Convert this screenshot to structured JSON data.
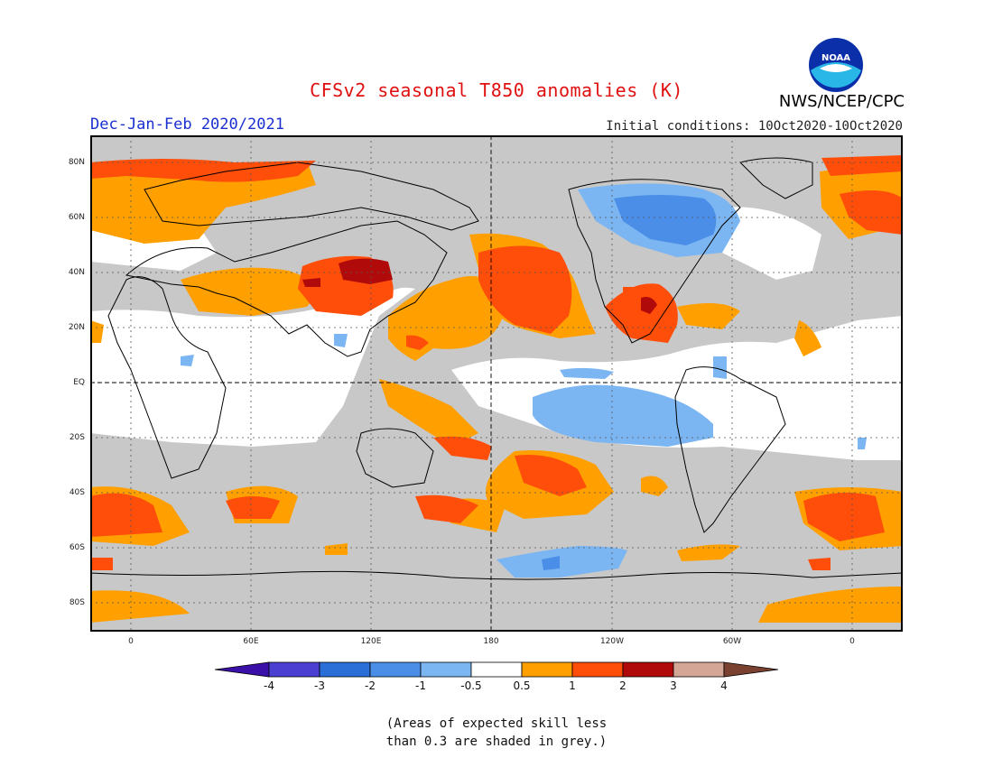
{
  "title": "CFSv2 seasonal T850 anomalies (K)",
  "season": "Dec-Jan-Feb 2020/2021",
  "agency": "NWS/NCEP/CPC",
  "logo_text": "NOAA",
  "initial_conditions": "Initial conditions: 10Oct2020-10Oct2020",
  "lat_labels": [
    "80N",
    "60N",
    "40N",
    "20N",
    "EQ",
    "20S",
    "40S",
    "60S",
    "80S"
  ],
  "lon_labels": [
    "0",
    "60E",
    "120E",
    "180",
    "120W",
    "60W",
    "0"
  ],
  "colorbar": {
    "labels": [
      "-4",
      "-3",
      "-2",
      "-1",
      "-0.5",
      "0.5",
      "1",
      "2",
      "3",
      "4"
    ],
    "colors": [
      "#3a10a8",
      "#4a3fd0",
      "#2a6fd8",
      "#4a8ee8",
      "#7cb6f2",
      "#ffffff",
      "#ff9f00",
      "#ff4d0a",
      "#b00a0a",
      "#d4a696",
      "#7a4030"
    ]
  },
  "note_line1": "(Areas of expected skill less",
  "note_line2": "than 0.3 are shaded in grey.)"
}
